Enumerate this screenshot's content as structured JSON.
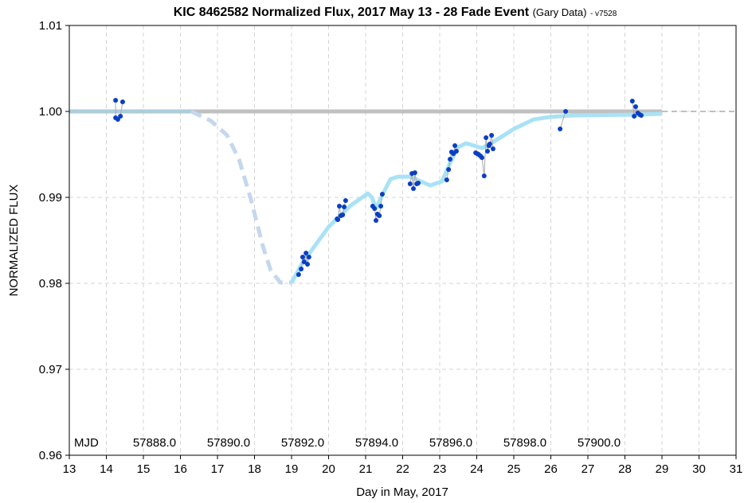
{
  "chart_data": {
    "type": "line",
    "title": "KIC 8462582 Normalized Flux, 2017 May 13 - 28 Fade Event",
    "title_note": "(Gary Data)",
    "version": "- v7528",
    "xlabel": "Day in May, 2017",
    "ylabel": "NORMALIZED FLUX",
    "xlim": [
      13,
      31
    ],
    "ylim": [
      0.96,
      1.01
    ],
    "x_ticks": [
      13,
      14,
      15,
      16,
      17,
      18,
      19,
      20,
      21,
      22,
      23,
      24,
      25,
      26,
      27,
      28,
      29,
      30,
      31
    ],
    "y_ticks": [
      0.96,
      0.97,
      0.98,
      0.99,
      1.0,
      1.01
    ],
    "y_tick_labels": [
      "0.96",
      "0.97",
      "0.98",
      "0.99",
      "1.00",
      "1.01"
    ],
    "grid": true,
    "mjd_annotation": {
      "label": "MJD",
      "labels": [
        "57888.0",
        "57890.0",
        "57892.0",
        "57894.0",
        "57896.0",
        "57898.0",
        "57900.0"
      ],
      "days": [
        14,
        16,
        18,
        20,
        22,
        24,
        26
      ]
    },
    "colors": {
      "points": "#0a3fc4",
      "model": "#a8e2f5",
      "model_dashed": "#c5d7ee",
      "baseline": "#c0c0c0",
      "grid": "#d4d4d4"
    },
    "series": [
      {
        "kind": "baseline",
        "x": [
          13,
          29
        ],
        "y": [
          1.0,
          1.0
        ]
      },
      {
        "kind": "baseline-dashed",
        "x": [
          29,
          31
        ],
        "y": [
          1.0,
          1.0
        ]
      },
      {
        "kind": "model-flat",
        "x": [
          13,
          16.29
        ],
        "y": [
          1.0,
          1.0
        ]
      },
      {
        "kind": "model-dashed",
        "x": [
          16.29,
          16.83,
          17.26,
          17.58,
          17.9,
          18.23,
          18.44,
          18.7,
          19.0
        ],
        "y": [
          1.0,
          0.99889,
          0.99722,
          0.99444,
          0.98981,
          0.98426,
          0.98148,
          0.98009,
          0.98009
        ]
      },
      {
        "kind": "model",
        "x": [
          19.0,
          19.3,
          20.0,
          20.6,
          21.06,
          21.17,
          21.28,
          21.45,
          21.67,
          21.88,
          22.2,
          22.74,
          23.06,
          23.28,
          23.49,
          23.71,
          24.14,
          24.46,
          25.0,
          25.54,
          25.97,
          26.61,
          28.33,
          29.0
        ],
        "y": [
          0.98009,
          0.98241,
          0.98657,
          0.98907,
          0.99046,
          0.99,
          0.9887,
          0.99028,
          0.99213,
          0.99241,
          0.99241,
          0.99139,
          0.99185,
          0.994,
          0.99583,
          0.9963,
          0.99574,
          0.99648,
          0.99796,
          0.99907,
          0.99935,
          0.99954,
          0.99963,
          0.99972
        ]
      },
      {
        "kind": "data",
        "x": [
          14.25,
          14.25,
          14.31,
          14.38,
          14.44,
          19.19,
          19.26,
          19.3,
          19.34,
          19.39,
          19.43,
          19.47,
          20.23,
          20.25,
          20.29,
          20.33,
          20.38,
          20.42,
          20.46,
          21.19,
          21.24,
          21.28,
          21.32,
          21.37,
          21.41,
          21.45,
          22.2,
          22.25,
          22.29,
          22.33,
          22.38,
          22.42,
          23.19,
          23.24,
          23.28,
          23.32,
          23.37,
          23.41,
          23.45,
          23.97,
          24.01,
          24.05,
          24.1,
          24.14,
          24.2,
          24.25,
          24.29,
          24.33,
          24.35,
          24.4,
          24.44,
          26.25,
          26.4,
          28.2,
          28.25,
          28.29,
          28.35,
          28.4,
          28.44
        ],
        "y": [
          1.0013,
          0.99926,
          0.99907,
          0.99944,
          1.00111,
          0.98102,
          0.98167,
          0.98306,
          0.9825,
          0.98352,
          0.98222,
          0.98306,
          0.9875,
          0.98741,
          0.98898,
          0.98787,
          0.98796,
          0.98889,
          0.98963,
          0.98898,
          0.9887,
          0.98731,
          0.98806,
          0.98787,
          0.98898,
          0.99037,
          0.99157,
          0.99278,
          0.99102,
          0.99287,
          0.99157,
          0.99167,
          0.99204,
          0.99324,
          0.99444,
          0.99528,
          0.99509,
          0.99602,
          0.99537,
          0.99519,
          0.99509,
          0.995,
          0.99481,
          0.99463,
          0.9925,
          0.99694,
          0.99537,
          0.99602,
          0.9962,
          0.99722,
          0.99565,
          0.99796,
          1.0,
          1.0012,
          0.99944,
          1.00056,
          0.99981,
          0.99963,
          0.99954
        ]
      }
    ]
  }
}
